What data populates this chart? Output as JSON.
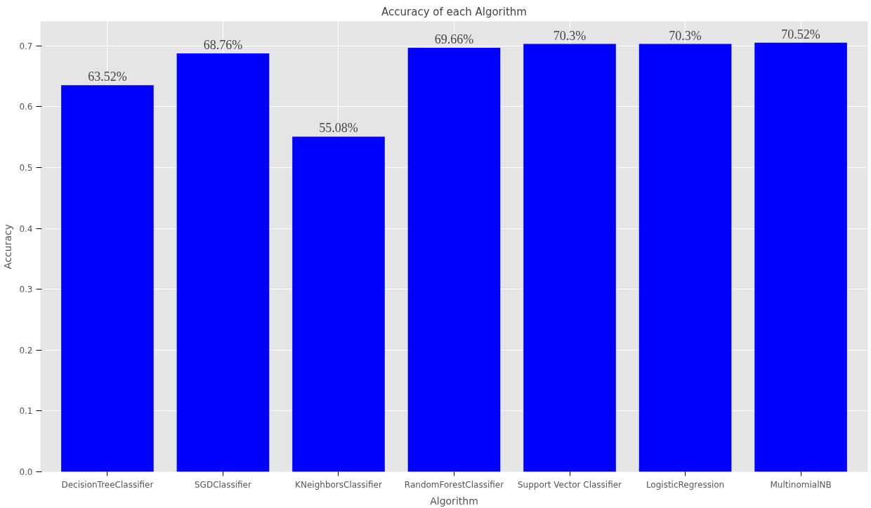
{
  "chart_data": {
    "type": "bar",
    "title": "Accuracy of each Algorithm",
    "xlabel": "Algorithm",
    "ylabel": "Accuracy",
    "categories": [
      "DecisionTreeClassifier",
      "SGDClassifier",
      "KNeighborsClassifier",
      "RandomForestClassifier",
      "Support Vector Classifier",
      "LogisticRegression",
      "MultinomialNB"
    ],
    "values": [
      0.6352,
      0.6876,
      0.5508,
      0.6966,
      0.703,
      0.703,
      0.7052
    ],
    "value_labels": [
      "63.52%",
      "68.76%",
      "55.08%",
      "69.66%",
      "70.3%",
      "70.3%",
      "70.52%"
    ],
    "color": "#0000ff",
    "ylim": [
      0,
      0.74
    ],
    "yticks": [
      {
        "value": 0,
        "label": "0.0"
      },
      0.1,
      0.2,
      0.3,
      0.4,
      0.5,
      0.6,
      0.7
    ],
    "grid": true
  }
}
